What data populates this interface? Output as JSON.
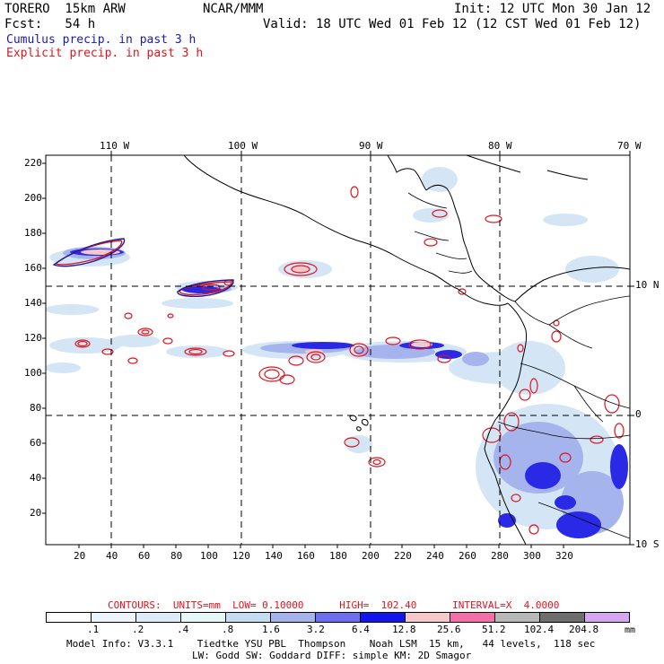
{
  "header": {
    "model": "TORERO  15km ARW",
    "org": "NCAR/MMM",
    "init": "Init: 12 UTC Mon 30 Jan 12",
    "fcst": "Fcst:   54 h",
    "valid": "Valid: 18 UTC Wed 01 Feb 12 (12 CST Wed 01 Feb 12)",
    "cumulus_label": "Cumulus precip. in past 3 h",
    "explicit_label": "Explicit precip. in past 3 h"
  },
  "colors": {
    "cumulus": "#1a1aa8",
    "explicit": "#e0141e",
    "grid": "#000000"
  },
  "map": {
    "lon_labels": [
      "110 W",
      "100 W",
      "90 W",
      "80 W",
      "70 W"
    ],
    "lat_labels": [
      "10 N",
      "0",
      "10 S"
    ],
    "x_ticks": [
      "20",
      "40",
      "60",
      "80",
      "100",
      "120",
      "140",
      "160",
      "180",
      "200",
      "220",
      "240",
      "260",
      "280",
      "300",
      "320"
    ],
    "y_ticks": [
      "220",
      "200",
      "180",
      "160",
      "140",
      "120",
      "100",
      "80",
      "60",
      "40",
      "20"
    ]
  },
  "contours": {
    "text": "CONTOURS:  UNITS=mm  LOW= 0.10000      HIGH=  102.40      INTERVAL=X  4.0000"
  },
  "colorbar": {
    "unit": "mm",
    "labels": [
      ".1",
      ".2",
      ".4",
      ".8",
      "1.6",
      "3.2",
      "6.4",
      "12.8",
      "25.6",
      "51.2",
      "102.4",
      "204.8"
    ],
    "colors": [
      "#ffffff",
      "#eef4fb",
      "#dcebf7",
      "#e4f8f8",
      "#c4dcf2",
      "#a6b4ee",
      "#6d6ff0",
      "#1414ee",
      "#f6c8cc",
      "#f46ea8",
      "#b8b8b8",
      "#6e6e6e",
      "#d6a6f2"
    ]
  },
  "footer": {
    "line1": "Model Info: V3.3.1    Tiedtke YSU PBL  Thompson    Noah LSM  15 km,   44 levels,  118 sec",
    "line2": "LW: Godd SW: Goddard DIFF: simple KM: 2D Smagor"
  }
}
